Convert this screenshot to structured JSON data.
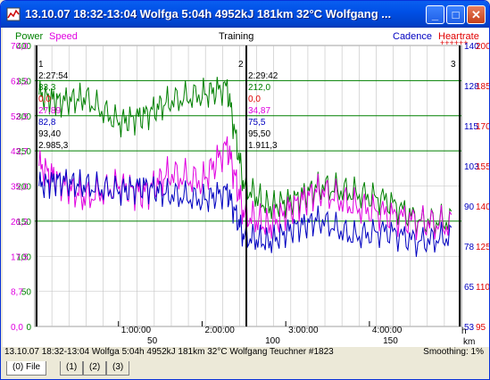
{
  "window": {
    "title": "13.10.07 18:32-13:04 Wolfga 5:04h 4952kJ 181km 32°C Wolfgang ...",
    "controls": {
      "minimize": "_",
      "maximize": "□",
      "close": "✕"
    }
  },
  "chart_header": {
    "power_label": "Power",
    "speed_label": "Speed",
    "center_title": "Training",
    "cadence_label": "Cadence",
    "heartrate_label": "Heartrate",
    "heartrate_marks": "++++++"
  },
  "axes": {
    "power_ticks": [
      "400",
      "350",
      "300",
      "250",
      "200",
      "150",
      "100",
      "50",
      "0"
    ],
    "speed_ticks": [
      "70,0",
      "61,2",
      "52,5",
      "43,7",
      "35,0",
      "26,2",
      "17,5",
      "8,7",
      "0,0"
    ],
    "cadence_ticks": [
      "140",
      "128",
      "115",
      "103",
      "90",
      "78",
      "65",
      "53"
    ],
    "hr_ticks": [
      "200",
      "185",
      "170",
      "155",
      "140",
      "125",
      "110",
      "95"
    ],
    "time_ticks": [
      "1:00:00",
      "2:00:00",
      "3:00:00",
      "4:00:00"
    ],
    "time_unit": "h",
    "km_ticks": [
      "50",
      "100",
      "150"
    ],
    "km_unit": "km"
  },
  "laps": {
    "lap1_label": "1",
    "lap2_label": "2",
    "lap3_label": "3",
    "lap1_values": [
      "2:27:54",
      "33,3",
      "0,0",
      "27,89",
      "82,8",
      "93,40",
      "2.985,3"
    ],
    "lap2_values": [
      "2:29:42",
      "212,0",
      "0,0",
      "34,87",
      "75,5",
      "95,50",
      "1.911,3"
    ]
  },
  "statusbar": {
    "text": "13.10.07 18:32-13:04 Wolfga 5:04h 4952kJ 181km 32°C Wolfgang Teuchner #1823",
    "smoothing": "Smoothing: 1%"
  },
  "tabs": [
    "(0) File",
    "(1)",
    "(2)",
    "(3)"
  ],
  "colors": {
    "power": "#008000",
    "speed": "#e000e0",
    "cadence": "#0000c0",
    "heartrate": "#e00000",
    "grid": "#c0c0c0",
    "hrline": "#008000"
  },
  "chart_data": {
    "type": "line",
    "x_unit": "h",
    "xlim": [
      0,
      5.1
    ],
    "series": [
      {
        "name": "Power",
        "axis": "left",
        "ylim": [
          0,
          400
        ],
        "values": [
          [
            0.05,
            330
          ],
          [
            0.3,
            320
          ],
          [
            0.6,
            325
          ],
          [
            1.0,
            290
          ],
          [
            1.3,
            300
          ],
          [
            1.6,
            320
          ],
          [
            2.0,
            330
          ],
          [
            2.3,
            340
          ],
          [
            2.5,
            200
          ],
          [
            2.8,
            170
          ],
          [
            3.1,
            180
          ],
          [
            3.4,
            200
          ],
          [
            3.8,
            190
          ],
          [
            4.2,
            180
          ],
          [
            4.6,
            150
          ],
          [
            5.0,
            150
          ]
        ]
      },
      {
        "name": "Speed",
        "axis": "left2",
        "ylim": [
          0,
          70
        ],
        "values": [
          [
            0.05,
            40
          ],
          [
            0.3,
            36
          ],
          [
            0.6,
            32
          ],
          [
            1.0,
            35
          ],
          [
            1.3,
            33
          ],
          [
            1.6,
            38
          ],
          [
            2.0,
            36
          ],
          [
            2.3,
            45
          ],
          [
            2.5,
            28
          ],
          [
            2.8,
            25
          ],
          [
            3.1,
            30
          ],
          [
            3.4,
            34
          ],
          [
            3.8,
            30
          ],
          [
            4.2,
            28
          ],
          [
            4.6,
            26
          ],
          [
            5.0,
            25
          ]
        ]
      },
      {
        "name": "Cadence",
        "axis": "right",
        "ylim": [
          40,
          140
        ],
        "values": [
          [
            0.05,
            90
          ],
          [
            0.3,
            92
          ],
          [
            0.6,
            90
          ],
          [
            1.0,
            88
          ],
          [
            1.3,
            90
          ],
          [
            1.6,
            87
          ],
          [
            2.0,
            85
          ],
          [
            2.3,
            88
          ],
          [
            2.5,
            72
          ],
          [
            2.8,
            70
          ],
          [
            3.1,
            75
          ],
          [
            3.4,
            78
          ],
          [
            3.8,
            72
          ],
          [
            4.2,
            74
          ],
          [
            4.6,
            70
          ],
          [
            5.0,
            72
          ]
        ]
      }
    ],
    "hr_lines": [
      185,
      170,
      155,
      125
    ]
  }
}
